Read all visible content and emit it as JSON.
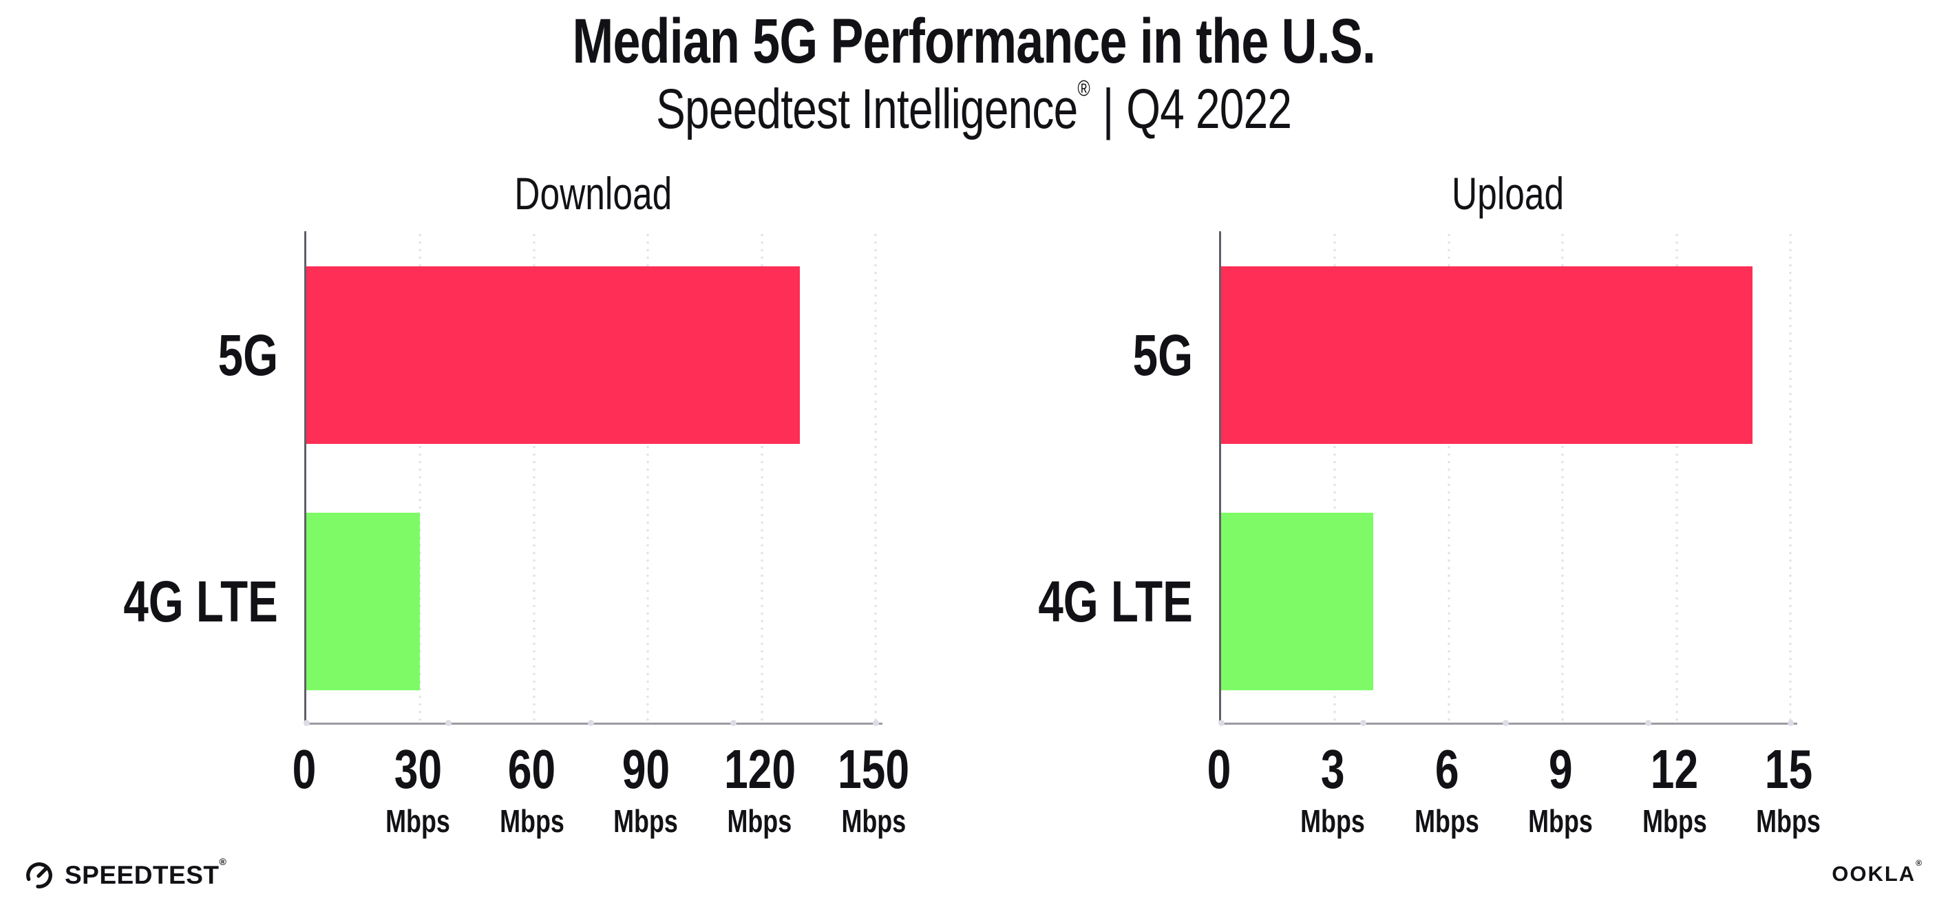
{
  "header": {
    "title": "Median 5G Performance in the U.S.",
    "subtitle": {
      "brand": "Speedtest Intelligence",
      "reg": "®",
      "separator": "|",
      "period": "Q4 2022"
    }
  },
  "colors": {
    "bar_5g": "#FE2E56",
    "bar_4g_lte": "#7EFA67",
    "axis_vertical": "#5F5F66",
    "axis_horizontal": "#9B9BA1",
    "gridline_dots": "#E2E2EC",
    "text": "#121216"
  },
  "chart_data": [
    {
      "type": "bar",
      "orientation": "horizontal",
      "title": "Download",
      "categories": [
        "5G",
        "4G LTE"
      ],
      "values": [
        130,
        30
      ],
      "unit": "Mbps",
      "xlim": [
        0,
        150
      ],
      "xticks": [
        0,
        30,
        60,
        90,
        120,
        150
      ],
      "grid": "vertical-dotted",
      "legend": "none",
      "bar_colors": [
        "#FE2E56",
        "#7EFA67"
      ]
    },
    {
      "type": "bar",
      "orientation": "horizontal",
      "title": "Upload",
      "categories": [
        "5G",
        "4G LTE"
      ],
      "values": [
        14,
        4
      ],
      "unit": "Mbps",
      "xlim": [
        0,
        15
      ],
      "xticks": [
        0,
        3,
        6,
        9,
        12,
        15
      ],
      "grid": "vertical-dotted",
      "legend": "none",
      "bar_colors": [
        "#FE2E56",
        "#7EFA67"
      ]
    }
  ],
  "footer": {
    "speedtest": "SPEEDTEST",
    "speedtest_mark": "®",
    "ookla": "OOKLA",
    "ookla_mark": "®"
  }
}
